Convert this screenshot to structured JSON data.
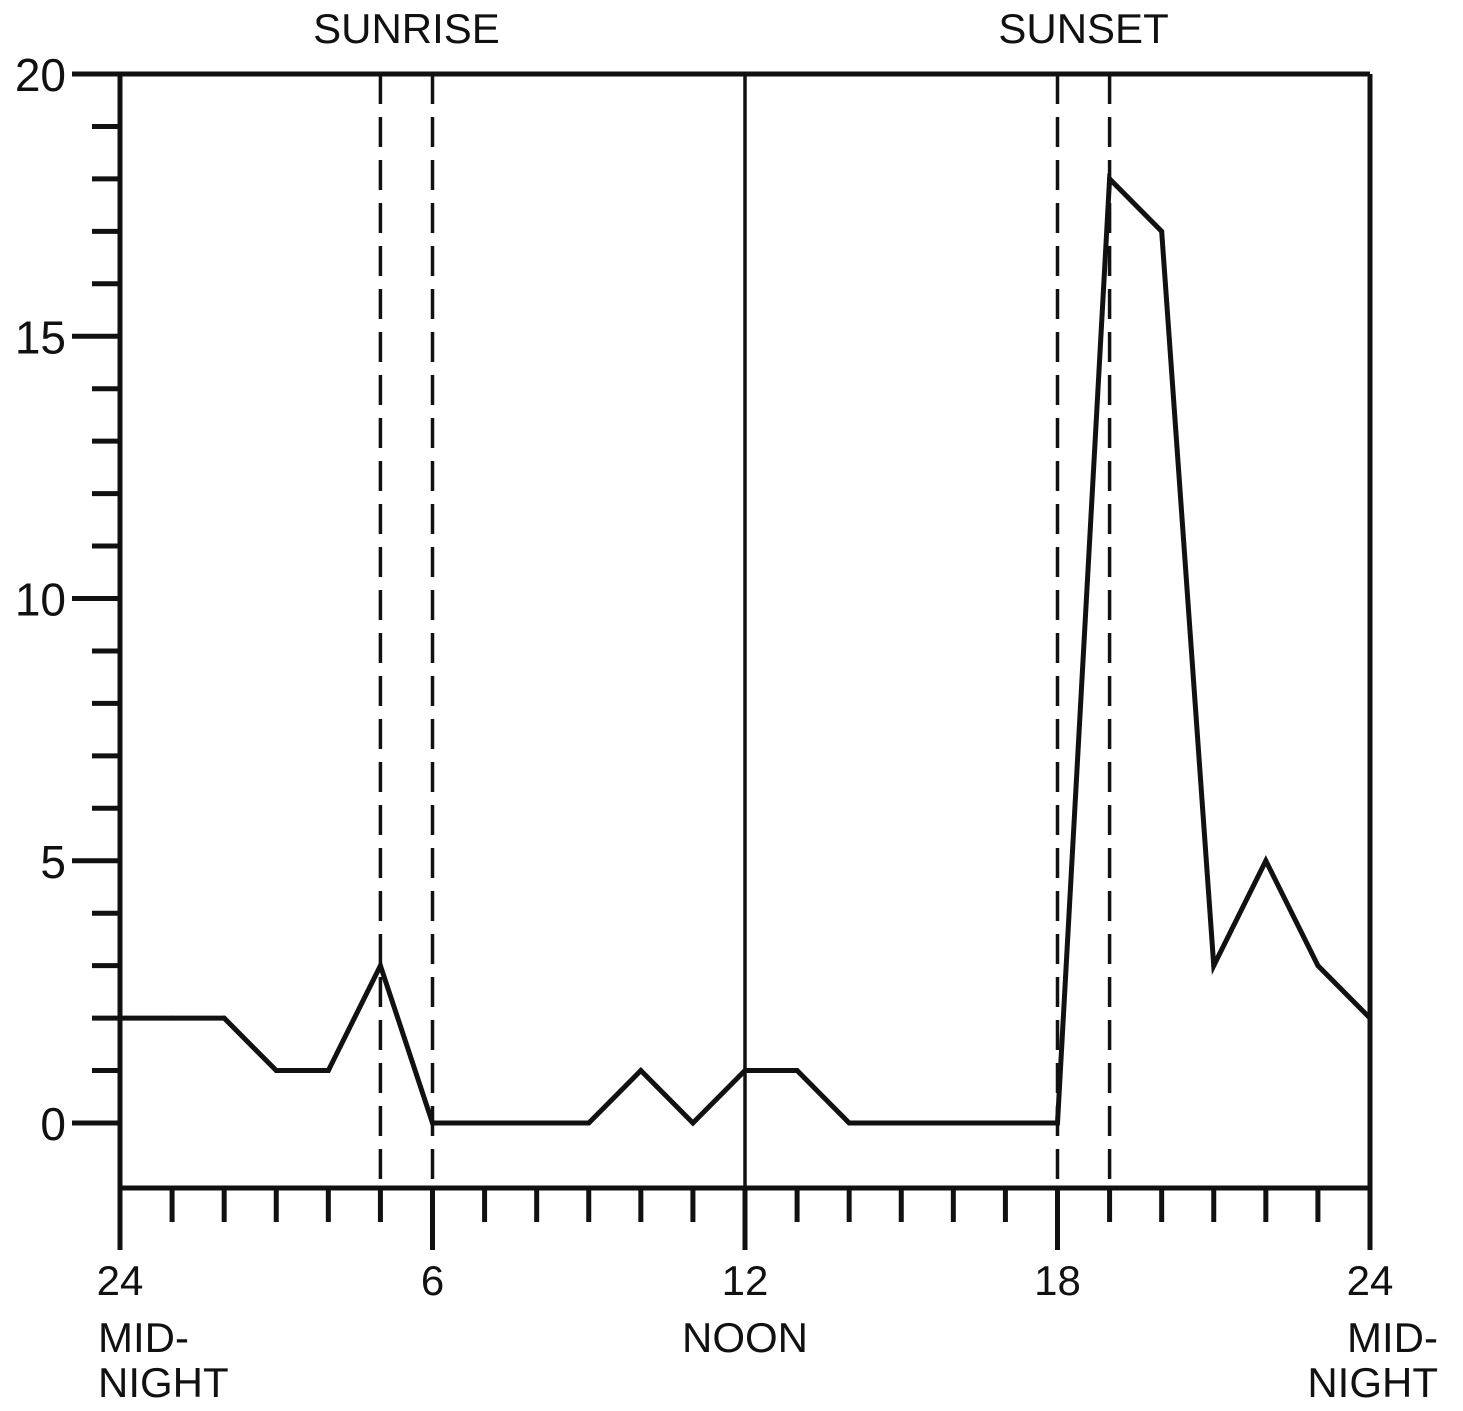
{
  "chart_data": {
    "type": "line",
    "title": "",
    "xlabel": "",
    "ylabel": "",
    "xlim": [
      0,
      24
    ],
    "ylim": [
      0,
      20
    ],
    "y_ticks": [
      "0",
      "5",
      "10",
      "15",
      "20"
    ],
    "x_ticks": [
      {
        "value": 0,
        "label": "24",
        "sublabel": "MID-\nNIGHT"
      },
      {
        "value": 6,
        "label": "6",
        "sublabel": ""
      },
      {
        "value": 12,
        "label": "12",
        "sublabel": "NOON"
      },
      {
        "value": 18,
        "label": "18",
        "sublabel": ""
      },
      {
        "value": 24,
        "label": "24",
        "sublabel": "MID-\nNIGHT"
      }
    ],
    "annotations": [
      {
        "label": "SUNRISE",
        "x_range": [
          5,
          6
        ]
      },
      {
        "label": "SUNSET",
        "x_range": [
          18,
          19
        ]
      }
    ],
    "reference_lines": [
      {
        "x": 5,
        "style": "dashed"
      },
      {
        "x": 6,
        "style": "dashed"
      },
      {
        "x": 12,
        "style": "solid"
      },
      {
        "x": 18,
        "style": "dashed"
      },
      {
        "x": 19,
        "style": "dashed"
      }
    ],
    "grid": false,
    "series": [
      {
        "x": [
          0,
          1,
          2,
          3,
          4,
          5,
          6,
          7,
          8,
          9,
          10,
          11,
          12,
          13,
          14,
          15,
          16,
          17,
          18,
          19,
          20,
          21,
          22,
          23,
          24
        ],
        "y": [
          2,
          2,
          2,
          1,
          1,
          3,
          0,
          0,
          0,
          0,
          1,
          0,
          1,
          1,
          0,
          0,
          0,
          0,
          0,
          18,
          17,
          3,
          5,
          3,
          2
        ],
        "color": "#111111"
      }
    ]
  }
}
